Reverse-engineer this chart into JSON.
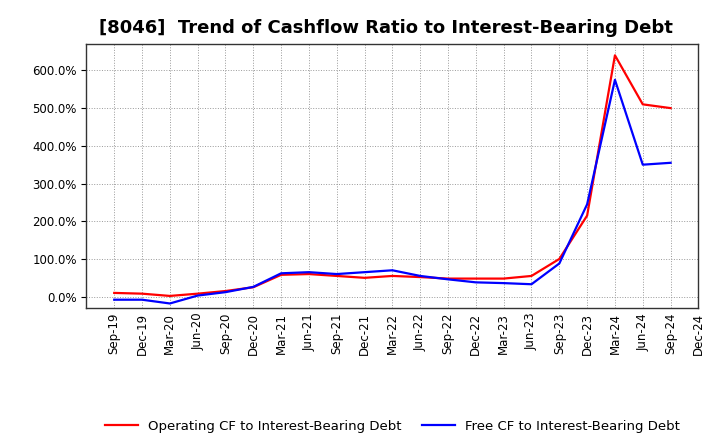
{
  "title": "[8046]  Trend of Cashflow Ratio to Interest-Bearing Debt",
  "x_labels": [
    "Sep-19",
    "Dec-19",
    "Mar-20",
    "Jun-20",
    "Sep-20",
    "Dec-20",
    "Mar-21",
    "Jun-21",
    "Sep-21",
    "Dec-21",
    "Mar-22",
    "Jun-22",
    "Sep-22",
    "Dec-22",
    "Mar-23",
    "Jun-23",
    "Sep-23",
    "Dec-23",
    "Mar-24",
    "Jun-24",
    "Sep-24",
    "Dec-24"
  ],
  "operating_cf_vals": [
    10.0,
    8.0,
    2.0,
    8.0,
    15.0,
    25.0,
    58.0,
    60.0,
    55.0,
    50.0,
    55.0,
    52.0,
    48.0,
    48.0,
    48.0,
    55.0,
    100.0,
    215.0,
    640.0,
    510.0,
    500.0,
    null
  ],
  "free_cf_vals": [
    -8.0,
    -8.0,
    -18.0,
    3.0,
    12.0,
    26.0,
    62.0,
    65.0,
    60.0,
    65.0,
    70.0,
    55.0,
    46.0,
    38.0,
    36.0,
    33.0,
    88.0,
    245.0,
    575.0,
    350.0,
    355.0,
    null
  ],
  "operating_color": "#FF0000",
  "free_color": "#0000FF",
  "background_color": "#FFFFFF",
  "plot_bg_color": "#FFFFFF",
  "grid_color": "#999999",
  "ylim": [
    -30,
    670
  ],
  "yticks": [
    0,
    100,
    200,
    300,
    400,
    500,
    600
  ],
  "legend_op": "Operating CF to Interest-Bearing Debt",
  "legend_free": "Free CF to Interest-Bearing Debt",
  "title_fontsize": 13,
  "axis_fontsize": 8.5,
  "legend_fontsize": 9.5
}
